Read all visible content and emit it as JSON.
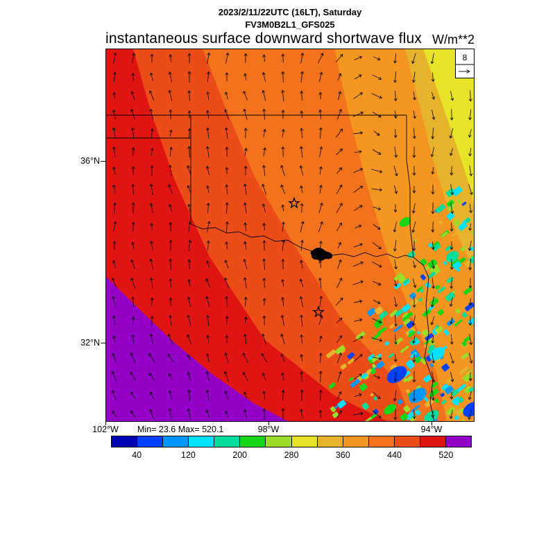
{
  "header": {
    "datetime_line": "2023/2/11/22UTC (16LT), Saturday",
    "model_line": "FV3M0B2L1_GFS025",
    "title": "instantaneous surface downward shortwave flux",
    "units": "W/m**2"
  },
  "map": {
    "lat_labels": [
      "36°N",
      "32°N"
    ],
    "lon_labels": [
      "102°W",
      "98°W",
      "94°W"
    ],
    "stats": "Min= 23.6 Max= 520.1",
    "ref_vector_label": "8"
  },
  "colorbar": {
    "tick_labels": [
      "40",
      "120",
      "200",
      "280",
      "360",
      "440",
      "520"
    ],
    "colors": [
      "#0000b4",
      "#0041ff",
      "#0098ff",
      "#00e0ff",
      "#00dc9b",
      "#17d617",
      "#9bdc28",
      "#e7e428",
      "#e7b32b",
      "#f59620",
      "#f3731d",
      "#ec4c17",
      "#e11414",
      "#9400c8"
    ]
  },
  "chart_data": {
    "type": "heatmap",
    "title": "instantaneous surface downward shortwave flux",
    "units": "W/m**2",
    "valid_time": "2023/2/11/22UTC (16LT), Saturday",
    "model": "FV3M0B2L1_GFS025",
    "min_value": 23.6,
    "max_value": 520.1,
    "colorbar_levels": [
      40,
      80,
      120,
      160,
      200,
      240,
      280,
      320,
      360,
      400,
      440,
      480,
      520
    ],
    "colorbar_tick_labels": [
      "40",
      "120",
      "200",
      "280",
      "360",
      "440",
      "520"
    ],
    "colorbar_colors": [
      "#0000b4",
      "#0041ff",
      "#0098ff",
      "#00e0ff",
      "#00dc9b",
      "#17d617",
      "#9bdc28",
      "#e7e428",
      "#e7b32b",
      "#f59620",
      "#f3731d",
      "#ec4c17",
      "#e11414",
      "#9400c8"
    ],
    "x_axis_ticks": [
      "102°W",
      "98°W",
      "94°W"
    ],
    "y_axis_ticks": [
      "36°N",
      "32°N"
    ],
    "wind_reference_value": 8,
    "overlays": [
      "wind vector arrows",
      "state borders (Texas / Oklahoma region)",
      "two star city markers"
    ],
    "spatial_pattern": [
      {
        "region": "southwest / lower-left",
        "values": "480 to >520 (red to purple)"
      },
      {
        "region": "west and center",
        "values": "360-480 (orange shades)"
      },
      {
        "region": "northeast / upper-right",
        "values": "280-360 (yellow to gold)"
      },
      {
        "region": "southeast cloud-shaded patches",
        "values": "40-240 (blue, cyan, green speckles)"
      }
    ]
  }
}
